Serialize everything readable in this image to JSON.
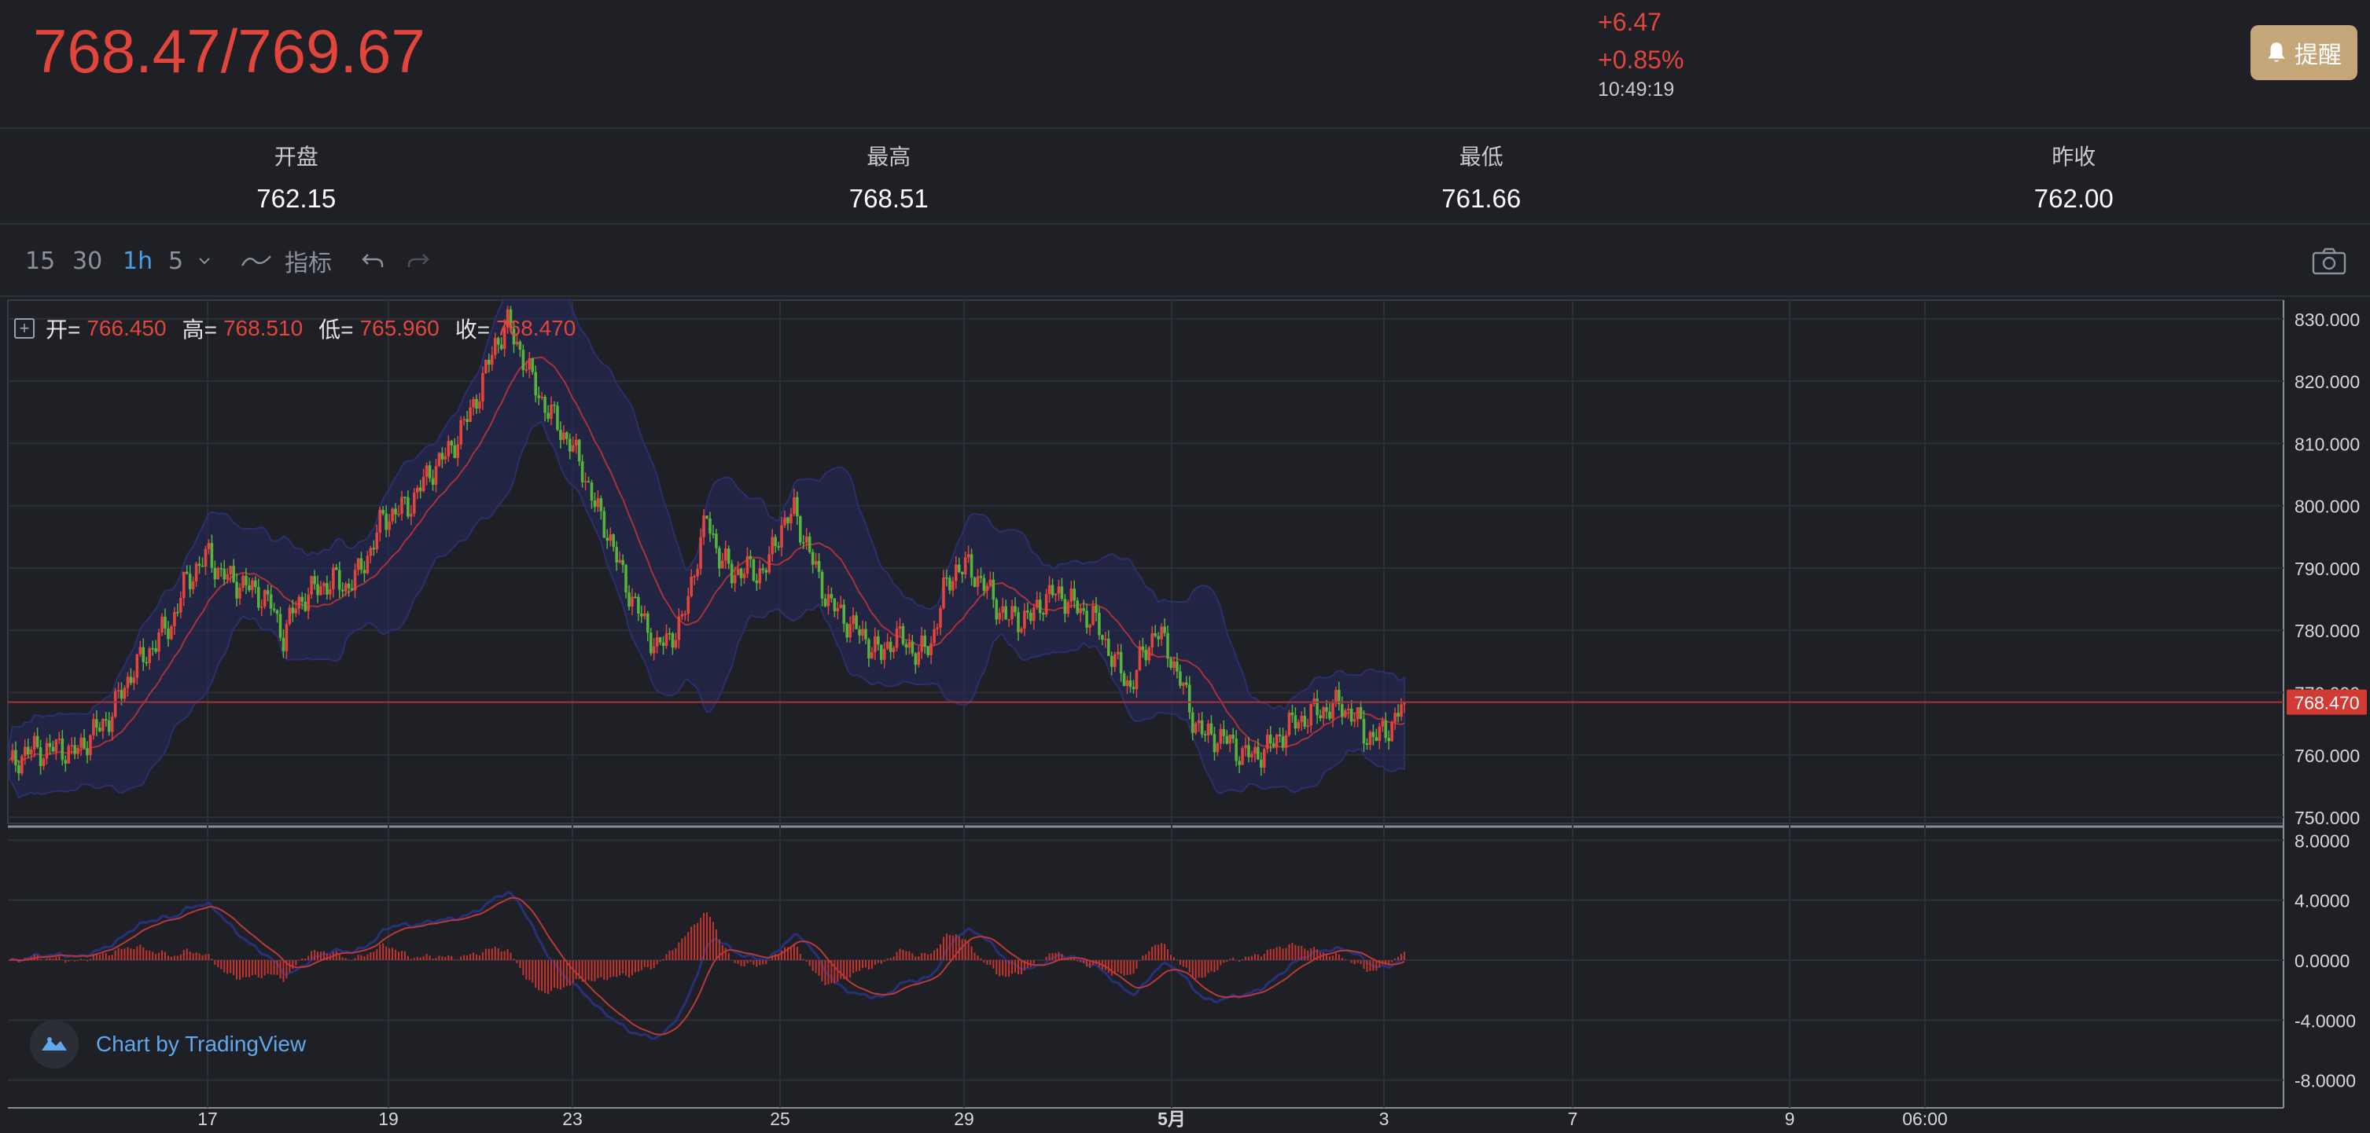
{
  "quote": {
    "price": "768.47/769.67",
    "change": "+6.47",
    "change_pct": "+0.85%",
    "time": "10:49:19",
    "alert_label": "提醒"
  },
  "stats": [
    {
      "label": "开盘",
      "value": "762.15"
    },
    {
      "label": "最高",
      "value": "768.51"
    },
    {
      "label": "最低",
      "value": "761.66"
    },
    {
      "label": "昨收",
      "value": "762.00"
    }
  ],
  "toolbar": {
    "intervals": [
      "15",
      "30",
      "1h",
      "5"
    ],
    "active_interval": "1h",
    "indicators_label": "指标"
  },
  "legend": {
    "open_key": "开=",
    "open": "766.450",
    "high_key": "高=",
    "high": "768.510",
    "low_key": "低=",
    "low": "765.960",
    "close_key": "收=",
    "close": "768.470"
  },
  "colors": {
    "up": "#e2453b",
    "down": "#57b33b",
    "bg": "#1f2026",
    "accent_gold": "#c5a678",
    "link_blue": "#5fa8f0"
  },
  "chart_data": {
    "type": "candlestick",
    "price_axis": [
      "830.000",
      "820.000",
      "810.000",
      "800.000",
      "790.000",
      "780.000",
      "770.000",
      "760.000",
      "750.000"
    ],
    "price_range": [
      749,
      833
    ],
    "last_price_label": "768.470",
    "last_price": 768.47,
    "macd_axis": [
      "8.0000",
      "4.0000",
      "0.0000",
      "-4.0000",
      "-8.0000"
    ],
    "macd_range": [
      -8.8,
      8.8
    ],
    "time_axis": [
      "17",
      "19",
      "23",
      "25",
      "29",
      "5月",
      "3",
      "7",
      "9",
      "06:00"
    ],
    "close_path": [
      758,
      760,
      761,
      760.5,
      761.5,
      760,
      762,
      764,
      766,
      770,
      774,
      776,
      779,
      781,
      787,
      790,
      792,
      789,
      788,
      787,
      786,
      784,
      779,
      784,
      786,
      787,
      788,
      787,
      789,
      793,
      798,
      799,
      800,
      803,
      806,
      808,
      811,
      815,
      820,
      826,
      829,
      825,
      820,
      816,
      813,
      810,
      806,
      800,
      796,
      790,
      785,
      781,
      777,
      779,
      781,
      790,
      798,
      792,
      789,
      790,
      789,
      791,
      797,
      799,
      794,
      788,
      784,
      782,
      780,
      778,
      776,
      779,
      778,
      776,
      778,
      786,
      790,
      790,
      788,
      785,
      782,
      782,
      782,
      785,
      786,
      785,
      783,
      782,
      778,
      774,
      771,
      776,
      780,
      777,
      772,
      766,
      763,
      763,
      762,
      760,
      760,
      761,
      763,
      765,
      766,
      767,
      767.5,
      768,
      766,
      763,
      763,
      765,
      768.47
    ]
  },
  "branding": {
    "tv_label": "Chart by TradingView"
  }
}
